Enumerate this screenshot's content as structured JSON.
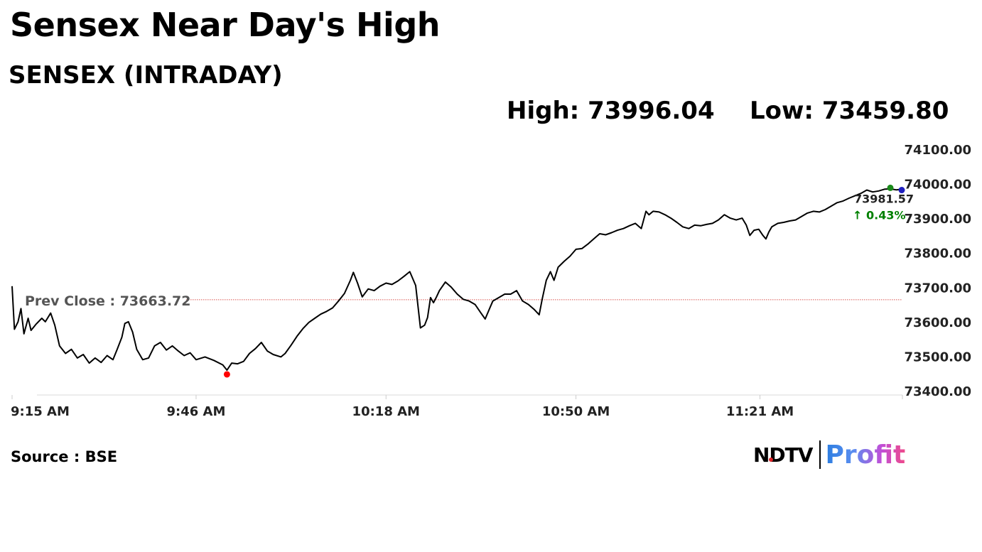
{
  "headline": "Sensex Near Day's High",
  "subtitle": "SENSEX (INTRADAY)",
  "high_text": "High: 73996.04",
  "low_text": "Low: 73459.80",
  "source": "Source : BSE",
  "logo": {
    "ndtv": "NDTV",
    "profit": "Profit"
  },
  "colors": {
    "line": "#000000",
    "prev_close": "#d9534f",
    "low_marker": "#ff0000",
    "up": "#008000",
    "end_marker_blue": "#1f1fbf",
    "end_marker_green": "#1a8a1a"
  },
  "chart_data": {
    "type": "line",
    "ylim": [
      73400,
      74100
    ],
    "yticks": [
      "74100.00",
      "74000.00",
      "73900.00",
      "73800.00",
      "73700.00",
      "73600.00",
      "73500.00",
      "73400.00"
    ],
    "xticks": [
      "9:15 AM",
      "9:46 AM",
      "10:18 AM",
      "10:50 AM",
      "11:21 AM"
    ],
    "x_unit": "minutes from 9:15 AM",
    "xlim": [
      0,
      150
    ],
    "xtick_values": [
      0,
      31,
      63,
      95,
      126
    ],
    "prev_close": {
      "label": "Prev Close : 73663.72",
      "value": 73663.72
    },
    "last": {
      "value_label": "73981.57",
      "change_label": "↑ 0.43%"
    },
    "series": [
      {
        "points": [
          [
            0,
            73703
          ],
          [
            0.4,
            73578
          ],
          [
            1,
            73600
          ],
          [
            1.5,
            73638
          ],
          [
            2,
            73565
          ],
          [
            2.7,
            73610
          ],
          [
            3.2,
            73575
          ],
          [
            4,
            73592
          ],
          [
            5,
            73610
          ],
          [
            5.6,
            73600
          ],
          [
            6.5,
            73625
          ],
          [
            7.2,
            73590
          ],
          [
            8,
            73530
          ],
          [
            9,
            73508
          ],
          [
            10,
            73520
          ],
          [
            11,
            73495
          ],
          [
            12,
            73505
          ],
          [
            13,
            73480
          ],
          [
            14,
            73495
          ],
          [
            15,
            73482
          ],
          [
            16,
            73502
          ],
          [
            17,
            73490
          ],
          [
            17.7,
            73520
          ],
          [
            18.5,
            73555
          ],
          [
            19,
            73595
          ],
          [
            19.6,
            73600
          ],
          [
            20.3,
            73570
          ],
          [
            21,
            73520
          ],
          [
            22,
            73490
          ],
          [
            23,
            73495
          ],
          [
            24,
            73530
          ],
          [
            25,
            73540
          ],
          [
            26,
            73518
          ],
          [
            27,
            73530
          ],
          [
            28,
            73515
          ],
          [
            29,
            73502
          ],
          [
            30,
            73510
          ],
          [
            31,
            73490
          ],
          [
            32.5,
            73498
          ],
          [
            34,
            73488
          ],
          [
            35.5,
            73475
          ],
          [
            36.2,
            73459.8
          ],
          [
            37,
            73480
          ],
          [
            38,
            73478
          ],
          [
            39,
            73485
          ],
          [
            40,
            73508
          ],
          [
            41,
            73522
          ],
          [
            42,
            73540
          ],
          [
            43,
            73515
          ],
          [
            44,
            73505
          ],
          [
            45.3,
            73498
          ],
          [
            46,
            73508
          ],
          [
            47,
            73532
          ],
          [
            48,
            73558
          ],
          [
            49,
            73580
          ],
          [
            50,
            73598
          ],
          [
            51,
            73610
          ],
          [
            52,
            73622
          ],
          [
            53,
            73630
          ],
          [
            54,
            73640
          ],
          [
            55,
            73660
          ],
          [
            56,
            73682
          ],
          [
            57,
            73720
          ],
          [
            57.5,
            73743
          ],
          [
            58.2,
            73712
          ],
          [
            59,
            73672
          ],
          [
            60,
            73695
          ],
          [
            61,
            73690
          ],
          [
            62,
            73703
          ],
          [
            63,
            73712
          ],
          [
            64,
            73708
          ],
          [
            65,
            73718
          ],
          [
            66,
            73731
          ],
          [
            67,
            73745
          ],
          [
            68,
            73705
          ],
          [
            68.8,
            73582
          ],
          [
            69.5,
            73590
          ],
          [
            70,
            73612
          ],
          [
            70.5,
            73670
          ],
          [
            71,
            73655
          ],
          [
            71.5,
            73672
          ],
          [
            72,
            73690
          ],
          [
            73,
            73715
          ],
          [
            74,
            73700
          ],
          [
            75,
            73680
          ],
          [
            76,
            73665
          ],
          [
            77,
            73660
          ],
          [
            78,
            73650
          ],
          [
            79,
            73625
          ],
          [
            79.7,
            73608
          ],
          [
            80.5,
            73640
          ],
          [
            81,
            73660
          ],
          [
            82,
            73670
          ],
          [
            83,
            73680
          ],
          [
            84,
            73680
          ],
          [
            85,
            73690
          ],
          [
            86,
            73660
          ],
          [
            87,
            73650
          ],
          [
            88,
            73635
          ],
          [
            88.8,
            73620
          ],
          [
            89.3,
            73665
          ],
          [
            90,
            73720
          ],
          [
            90.7,
            73745
          ],
          [
            91.3,
            73720
          ],
          [
            92,
            73758
          ],
          [
            93,
            73775
          ],
          [
            94,
            73790
          ],
          [
            95,
            73810
          ],
          [
            96,
            73812
          ],
          [
            97,
            73825
          ],
          [
            98,
            73840
          ],
          [
            99,
            73855
          ],
          [
            100,
            73852
          ],
          [
            101,
            73858
          ],
          [
            102,
            73865
          ],
          [
            103,
            73870
          ],
          [
            104,
            73878
          ],
          [
            105,
            73885
          ],
          [
            106,
            73870
          ],
          [
            106.8,
            73920
          ],
          [
            107.3,
            73910
          ],
          [
            108,
            73920
          ],
          [
            109,
            73918
          ],
          [
            110,
            73910
          ],
          [
            111,
            73900
          ],
          [
            112,
            73888
          ],
          [
            113,
            73875
          ],
          [
            114,
            73870
          ],
          [
            115,
            73880
          ],
          [
            116,
            73878
          ],
          [
            117,
            73882
          ],
          [
            118,
            73885
          ],
          [
            119,
            73895
          ],
          [
            120,
            73910
          ],
          [
            121,
            73900
          ],
          [
            122,
            73895
          ],
          [
            123,
            73900
          ],
          [
            123.7,
            73880
          ],
          [
            124.3,
            73850
          ],
          [
            125,
            73865
          ],
          [
            125.8,
            73868
          ],
          [
            126.5,
            73850
          ],
          [
            127,
            73840
          ],
          [
            127.5,
            73860
          ],
          [
            128,
            73875
          ],
          [
            129,
            73885
          ],
          [
            130,
            73888
          ],
          [
            131,
            73892
          ],
          [
            132,
            73895
          ],
          [
            133,
            73905
          ],
          [
            134,
            73915
          ],
          [
            135,
            73920
          ],
          [
            136,
            73918
          ],
          [
            137,
            73925
          ],
          [
            138,
            73935
          ],
          [
            139,
            73945
          ],
          [
            140,
            73950
          ],
          [
            141,
            73958
          ],
          [
            142,
            73965
          ],
          [
            143,
            73972
          ],
          [
            144,
            73981.57
          ],
          [
            145,
            73976
          ],
          [
            146,
            73979
          ],
          [
            147,
            73984
          ],
          [
            148,
            73985
          ],
          [
            149,
            73982
          ],
          [
            150,
            73984
          ]
        ]
      }
    ]
  }
}
